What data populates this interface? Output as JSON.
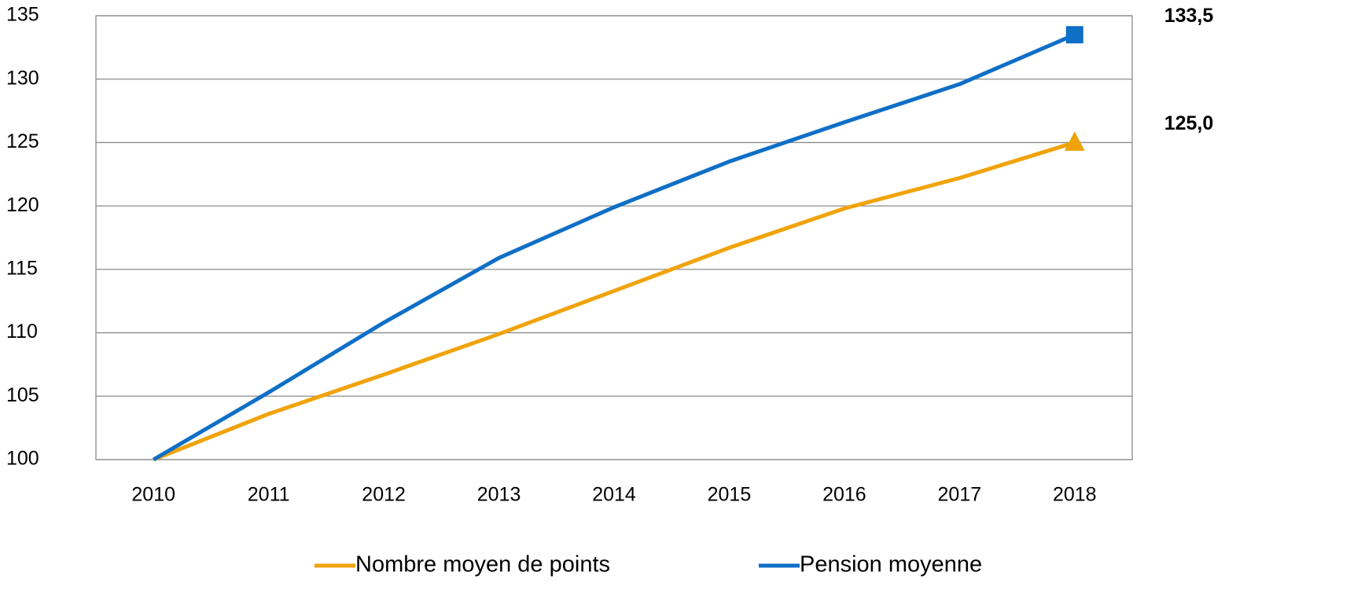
{
  "chart_data": {
    "type": "line",
    "categories": [
      "2010",
      "2011",
      "2012",
      "2013",
      "2014",
      "2015",
      "2016",
      "2017",
      "2018"
    ],
    "series": [
      {
        "name": "Nombre moyen de points",
        "color": "#f0a30a",
        "marker": "triangle",
        "values": [
          100,
          103.6,
          106.7,
          109.9,
          113.3,
          116.7,
          119.8,
          122.2,
          125.0
        ],
        "value_labels": [
          null,
          null,
          null,
          null,
          null,
          null,
          null,
          null,
          "125,0"
        ]
      },
      {
        "name": "Pension moyenne",
        "color": "#0f6fc6",
        "marker": "square",
        "values": [
          100,
          105.3,
          110.8,
          115.9,
          119.9,
          123.5,
          126.6,
          129.6,
          133.5
        ],
        "value_labels": [
          null,
          null,
          null,
          null,
          null,
          null,
          null,
          null,
          "133,5"
        ]
      }
    ],
    "ylim": [
      100,
      135
    ],
    "yticks": [
      100,
      105,
      110,
      115,
      120,
      125,
      130,
      135
    ],
    "grid": true,
    "legend": "bottom"
  }
}
